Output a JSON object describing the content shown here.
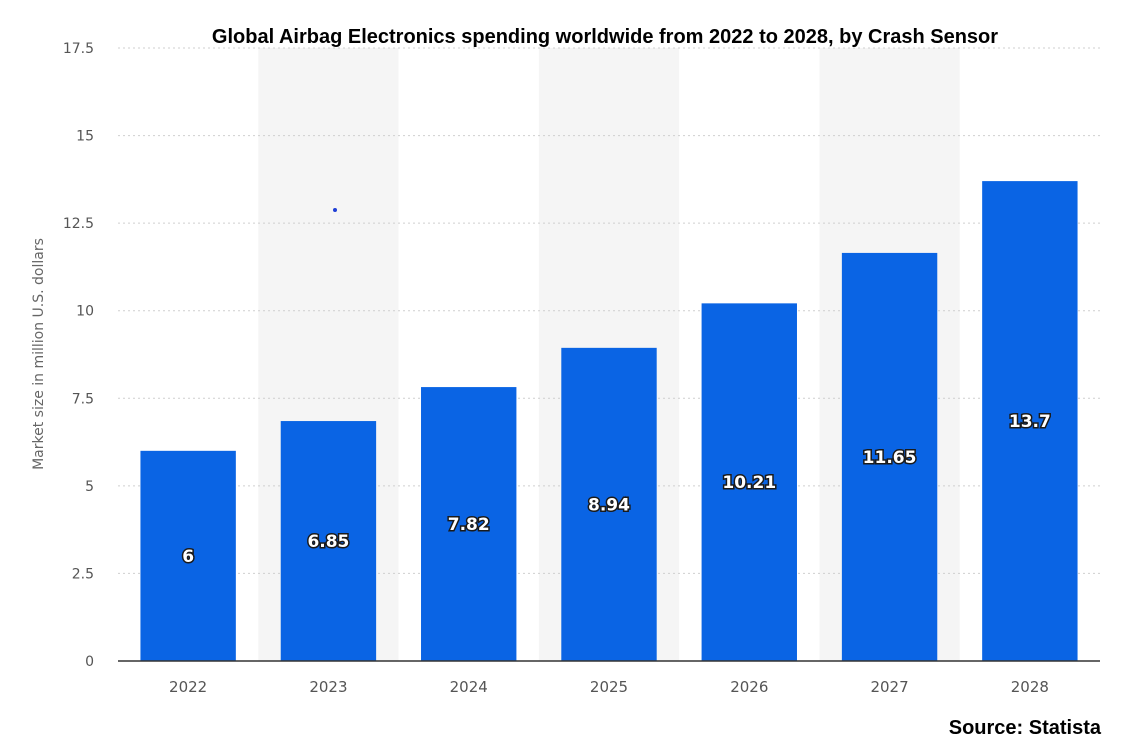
{
  "chart_data": {
    "type": "bar",
    "title": "Global Airbag Electronics spending worldwide from 2022 to 2028, by Crash Sensor",
    "ylabel": "Market size in million U.S. dollars",
    "xlabel": "",
    "categories": [
      "2022",
      "2023",
      "2024",
      "2025",
      "2026",
      "2027",
      "2028"
    ],
    "values": [
      6,
      6.85,
      7.82,
      8.94,
      10.21,
      11.65,
      13.7
    ],
    "data_labels": [
      "6",
      "6.85",
      "7.82",
      "8.94",
      "10.21",
      "11.65",
      "13.7"
    ],
    "ylim": [
      0,
      17.5
    ],
    "yticks": [
      "0",
      "2.5",
      "5",
      "7.5",
      "10",
      "12.5",
      "15",
      "17.5"
    ],
    "grid": true,
    "bar_color": "#0a64e4",
    "alternate_band_color": "#f5f5f5",
    "source": "Source: Statista"
  }
}
